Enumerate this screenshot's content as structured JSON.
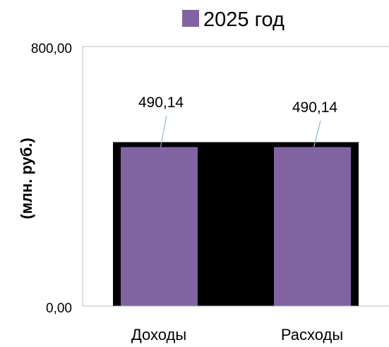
{
  "chart_data": {
    "type": "bar",
    "title": "",
    "categories": [
      "Доходы",
      "Расходы"
    ],
    "series": [
      {
        "name": "2025 год",
        "values": [
          490.14,
          490.14
        ],
        "value_labels": [
          "490,14",
          "490,14"
        ],
        "color": "#8064a2"
      }
    ],
    "xlabel": "",
    "ylabel": "(млн. руб.)",
    "ylim": [
      0,
      800
    ],
    "y_ticks": [
      0,
      800
    ],
    "y_tick_labels": [
      "0,00",
      "800,00"
    ],
    "legend_position": "top",
    "grid": false,
    "plot_area_fill": "#000000",
    "leader_line_color": "#8fb4e3"
  }
}
